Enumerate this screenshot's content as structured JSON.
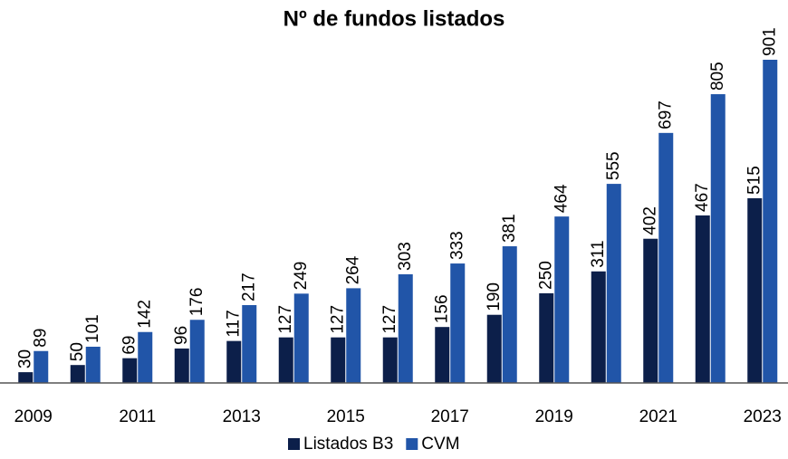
{
  "chart_data": {
    "type": "bar",
    "title": "Nº de fundos listados",
    "categories": [
      "2009",
      null,
      "2011",
      null,
      "2013",
      null,
      "2015",
      null,
      "2017",
      null,
      "2019",
      null,
      "2021",
      null,
      "2023"
    ],
    "series": [
      {
        "name": "Listados B3",
        "color": "#0c1f4a",
        "values": [
          30,
          50,
          69,
          96,
          117,
          127,
          127,
          127,
          156,
          190,
          250,
          311,
          402,
          467,
          515
        ]
      },
      {
        "name": "CVM",
        "color": "#2155a8",
        "values": [
          89,
          101,
          142,
          176,
          217,
          249,
          264,
          303,
          333,
          381,
          464,
          555,
          697,
          805,
          901
        ]
      }
    ],
    "legend": "bottom"
  }
}
